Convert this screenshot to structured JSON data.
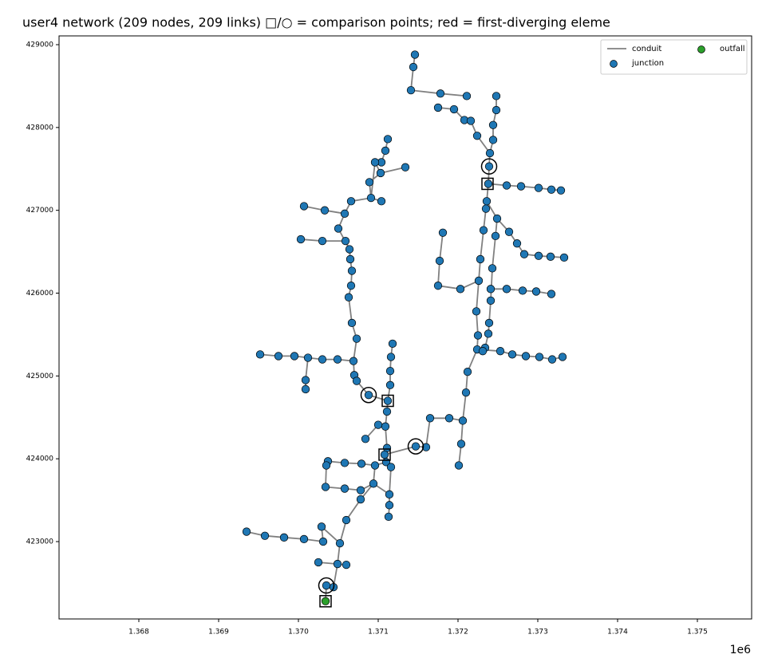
{
  "chart_data": {
    "type": "scatter",
    "title": "user4 network  (209 nodes, 209 links)  □/○ = comparison points; red = first-diverging eleme",
    "x_offset_text": "1e6",
    "xlim": [
      1367000,
      1375680
    ],
    "ylim": [
      422066,
      429106
    ],
    "xticks": [
      {
        "value": 1368000,
        "label": "1.368"
      },
      {
        "value": 1369000,
        "label": "1.369"
      },
      {
        "value": 1370000,
        "label": "1.370"
      },
      {
        "value": 1371000,
        "label": "1.371"
      },
      {
        "value": 1372000,
        "label": "1.372"
      },
      {
        "value": 1373000,
        "label": "1.373"
      },
      {
        "value": 1374000,
        "label": "1.374"
      },
      {
        "value": 1375000,
        "label": "1.375"
      }
    ],
    "yticks": [
      423000,
      424000,
      425000,
      426000,
      427000,
      428000,
      429000
    ],
    "legend": "upper right",
    "series": [
      {
        "name": "conduit",
        "color": "#808080",
        "marker": "line",
        "x": [
          1371460,
          1371440,
          1371410,
          1371780,
          1372110,
          null,
          1371750,
          1371950,
          1372080,
          1372160,
          1372240,
          1372400,
          1372390,
          1372380,
          1372360,
          1372350,
          1372320,
          1372280,
          1372260,
          1372230,
          1372250,
          1372240,
          1372120,
          1372100,
          1372060,
          1372040,
          1372010,
          null,
          1372480,
          1372480,
          1372440,
          1372440,
          1372400,
          null,
          1372380,
          1372610,
          1372790,
          1373010,
          1373170,
          1373290,
          null,
          1372360,
          1372490,
          1372640,
          1372740,
          1372830,
          1373010,
          1373160,
          1373330,
          null,
          1372490,
          1372470,
          1372430,
          1372410,
          1372390,
          1372380,
          1372340,
          1372310,
          null,
          1372240,
          1372530,
          1372680,
          1372850,
          1373020,
          1373180,
          1373310,
          null,
          1372410,
          1372610,
          1372810,
          1372980,
          1373170,
          null,
          1372260,
          1372030,
          1371750,
          1371770,
          1371810,
          null,
          1372060,
          1371890,
          1371650,
          1371600,
          1371470,
          1371080,
          null,
          1371120,
          1371090,
          1371040,
          1370960,
          1370910,
          1370660,
          1370580,
          1370500,
          1370640,
          1370650,
          1370670,
          1370660,
          1370630,
          1370670,
          1370730,
          1370690,
          1370700,
          1370730,
          1370880,
          1371120,
          null,
          1370960,
          1371030,
          1370890,
          1370910,
          null,
          1371030,
          1371340,
          null,
          1370910,
          1371040,
          null,
          1370070,
          1370330,
          1370580,
          null,
          1370030,
          1370300,
          1370590,
          1370640,
          null,
          1369520,
          1369750,
          1369950,
          1370120,
          1370300,
          1370490,
          1370690,
          null,
          1370120,
          1370090,
          1370090,
          null,
          1371180,
          1371160,
          1371150,
          1371150,
          1371120,
          1371110,
          1371090,
          1371110,
          1371080,
          1371100,
          1371160,
          1371140,
          1371140,
          1371130,
          null,
          1371090,
          1371000,
          1370840,
          null,
          1371100,
          1370960,
          1370790,
          1370580,
          1370370,
          1370350,
          1370340,
          null,
          1370960,
          1370940,
          1370780,
          1370600,
          1370520,
          1370490,
          1370440,
          1370350,
          1370340,
          null,
          1370340,
          1370580,
          1370780,
          1370940,
          1371140,
          null,
          1370520,
          1370290,
          1370310,
          1370070,
          1369820,
          1369580,
          1369350,
          null,
          1370490,
          1370250,
          null,
          1370490,
          1370600
        ],
        "y": [
          428880,
          428730,
          428450,
          428410,
          428380,
          null,
          428240,
          428220,
          428090,
          428080,
          427900,
          427690,
          427530,
          427320,
          427110,
          427020,
          426760,
          426410,
          426150,
          425780,
          425490,
          425320,
          425050,
          424800,
          424460,
          424180,
          423920,
          null,
          428380,
          428210,
          428030,
          427850,
          427690,
          null,
          427320,
          427300,
          427290,
          427270,
          427250,
          427240,
          null,
          427110,
          426900,
          426740,
          426600,
          426470,
          426450,
          426440,
          426430,
          null,
          426900,
          426690,
          426300,
          425910,
          425640,
          425510,
          425340,
          425300,
          null,
          425320,
          425300,
          425260,
          425240,
          425230,
          425200,
          425230,
          null,
          426050,
          426050,
          426030,
          426020,
          425990,
          null,
          426150,
          426050,
          426090,
          426390,
          426730,
          null,
          424460,
          424490,
          424490,
          424140,
          424150,
          424050,
          null,
          427860,
          427720,
          427580,
          427580,
          427150,
          427110,
          426960,
          426780,
          426530,
          426410,
          426270,
          426090,
          425950,
          425640,
          425450,
          425180,
          425010,
          424940,
          424770,
          424700,
          null,
          427580,
          427450,
          427340,
          427150,
          null,
          427450,
          427520,
          null,
          427150,
          427110,
          null,
          427050,
          427000,
          426960,
          null,
          426650,
          426630,
          426630,
          426530,
          null,
          425260,
          425240,
          425240,
          425220,
          425200,
          425200,
          425180,
          null,
          425220,
          424950,
          424840,
          null,
          425390,
          425230,
          425060,
          424890,
          424700,
          424570,
          424390,
          424130,
          424050,
          423960,
          423900,
          423570,
          423440,
          423300,
          null,
          424390,
          424410,
          424240,
          null,
          423960,
          423920,
          423940,
          423950,
          423970,
          423920,
          423660,
          null,
          423920,
          423700,
          423510,
          423260,
          422980,
          422730,
          422450,
          422470,
          422280,
          null,
          423660,
          423640,
          423620,
          423700,
          423570,
          null,
          422980,
          423180,
          423000,
          423030,
          423050,
          423070,
          423120,
          null,
          422730,
          422750,
          null,
          422730,
          422720
        ]
      },
      {
        "name": "junction",
        "color": "#1f77b4",
        "marker": "o",
        "x": [
          1371460,
          1371440,
          1371410,
          1371780,
          1372110,
          1371750,
          1371950,
          1372080,
          1372160,
          1372240,
          1372400,
          1372390,
          1372380,
          1372360,
          1372350,
          1372320,
          1372280,
          1372260,
          1372230,
          1372250,
          1372240,
          1372120,
          1372100,
          1372060,
          1372040,
          1372010,
          1372480,
          1372480,
          1372440,
          1372440,
          1372610,
          1372790,
          1373010,
          1373170,
          1373290,
          1372490,
          1372640,
          1372740,
          1372830,
          1373010,
          1373160,
          1373330,
          1372470,
          1372430,
          1372410,
          1372390,
          1372380,
          1372340,
          1372310,
          1372530,
          1372680,
          1372850,
          1373020,
          1373180,
          1373310,
          1372410,
          1372610,
          1372810,
          1372980,
          1373170,
          1372030,
          1371750,
          1371770,
          1371810,
          1371890,
          1371650,
          1371600,
          1371470,
          1371120,
          1371090,
          1371040,
          1370960,
          1370910,
          1370660,
          1370580,
          1370500,
          1370640,
          1370650,
          1370670,
          1370660,
          1370630,
          1370670,
          1370730,
          1370690,
          1370700,
          1370730,
          1370880,
          1371120,
          1371030,
          1370890,
          1371340,
          1371040,
          1370070,
          1370330,
          1370030,
          1370300,
          1370590,
          1369520,
          1369750,
          1369950,
          1370120,
          1370300,
          1370490,
          1370090,
          1370090,
          1371180,
          1371160,
          1371150,
          1371150,
          1371110,
          1371090,
          1371110,
          1371080,
          1371100,
          1371160,
          1371140,
          1371140,
          1371130,
          1371000,
          1370840,
          1370960,
          1370790,
          1370580,
          1370370,
          1370350,
          1370340,
          1370940,
          1370780,
          1370600,
          1370520,
          1370490,
          1370440,
          1370350,
          1370580,
          1370780,
          1370290,
          1370310,
          1370070,
          1369820,
          1369580,
          1369350,
          1370250,
          1370600
        ],
        "y": [
          428880,
          428730,
          428450,
          428410,
          428380,
          428240,
          428220,
          428090,
          428080,
          427900,
          427690,
          427530,
          427320,
          427110,
          427020,
          426760,
          426410,
          426150,
          425780,
          425490,
          425320,
          425050,
          424800,
          424460,
          424180,
          423920,
          428380,
          428210,
          428030,
          427850,
          427300,
          427290,
          427270,
          427250,
          427240,
          426900,
          426740,
          426600,
          426470,
          426450,
          426440,
          426430,
          426690,
          426300,
          425910,
          425640,
          425510,
          425340,
          425300,
          425300,
          425260,
          425240,
          425230,
          425200,
          425230,
          426050,
          426050,
          426030,
          426020,
          425990,
          426050,
          426090,
          426390,
          426730,
          424490,
          424490,
          424140,
          424150,
          427860,
          427720,
          427580,
          427580,
          427150,
          427110,
          426960,
          426780,
          426530,
          426410,
          426270,
          426090,
          425950,
          425640,
          425450,
          425180,
          425010,
          424940,
          424770,
          424700,
          427450,
          427340,
          427520,
          427110,
          427050,
          427000,
          426650,
          426630,
          426630,
          425260,
          425240,
          425240,
          425220,
          425200,
          425200,
          424950,
          424840,
          425390,
          425230,
          425060,
          424890,
          424570,
          424390,
          424130,
          424050,
          423960,
          423900,
          423570,
          423440,
          423300,
          424410,
          424240,
          423920,
          423940,
          423950,
          423970,
          423920,
          423660,
          423700,
          423510,
          423260,
          422980,
          422730,
          422450,
          422470,
          423640,
          423620,
          423180,
          423000,
          423030,
          423050,
          423070,
          423120,
          422750,
          422720
        ]
      },
      {
        "name": "outfall",
        "color": "#2ca02c",
        "marker": "o",
        "x": [
          1370340
        ],
        "y": [
          422280
        ]
      }
    ],
    "comparison_points": [
      {
        "marker": "square",
        "x": [
          1371120,
          1371080,
          1372370,
          1370340
        ],
        "y": [
          424700,
          424050,
          427320,
          422280
        ]
      },
      {
        "marker": "circle",
        "x": [
          1370880,
          1371470,
          1372390,
          1370350
        ],
        "y": [
          424770,
          424150,
          427530,
          422470
        ]
      }
    ]
  }
}
